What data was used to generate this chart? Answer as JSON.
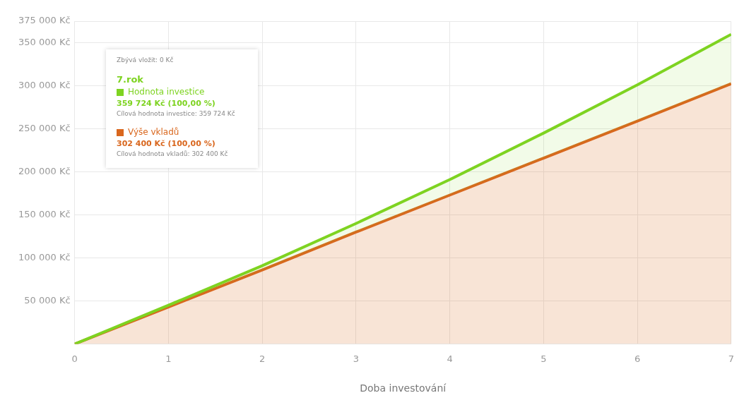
{
  "chart_data": {
    "type": "area",
    "xlabel": "Doba investování",
    "x": [
      0,
      1,
      2,
      3,
      4,
      5,
      6,
      7
    ],
    "series": [
      {
        "name": "Hodnota investice",
        "color": "#7ed321",
        "values": [
          0,
          45000,
          91000,
          140000,
          191000,
          245000,
          301000,
          359724
        ]
      },
      {
        "name": "Výše vkladů",
        "color": "#d9671e",
        "values": [
          0,
          43000,
          86000,
          130000,
          173000,
          216000,
          259000,
          302400
        ]
      }
    ],
    "xlim": [
      0,
      7
    ],
    "xticks": [
      0,
      1,
      2,
      3,
      4,
      5,
      6,
      7
    ],
    "ylim": [
      0,
      375000
    ],
    "yticks": [
      {
        "value": 0,
        "label": null
      },
      {
        "value": 50000,
        "label": "50 000 Kč"
      },
      {
        "value": 100000,
        "label": "100 000 Kč"
      },
      {
        "value": 150000,
        "label": "150 000 Kč"
      },
      {
        "value": 200000,
        "label": "200 000 Kč"
      },
      {
        "value": 250000,
        "label": "250 000 Kč"
      },
      {
        "value": 300000,
        "label": "300 000 Kč"
      },
      {
        "value": 350000,
        "label": "350 000 Kč"
      },
      {
        "value": 375000,
        "label": "375 000 Kč"
      }
    ],
    "grid": true,
    "marker": "none",
    "legend": "top left",
    "annotations": [
      "Zbývá vložit: 0 Kč",
      "7.rok",
      "359 724 Kč (100,00 %)",
      "Cílová hodnota investice: 359 724 Kč",
      "302 400 Kč (100,00 %)",
      "Cílová hodnota vkladů: 302 400 Kč"
    ]
  }
}
